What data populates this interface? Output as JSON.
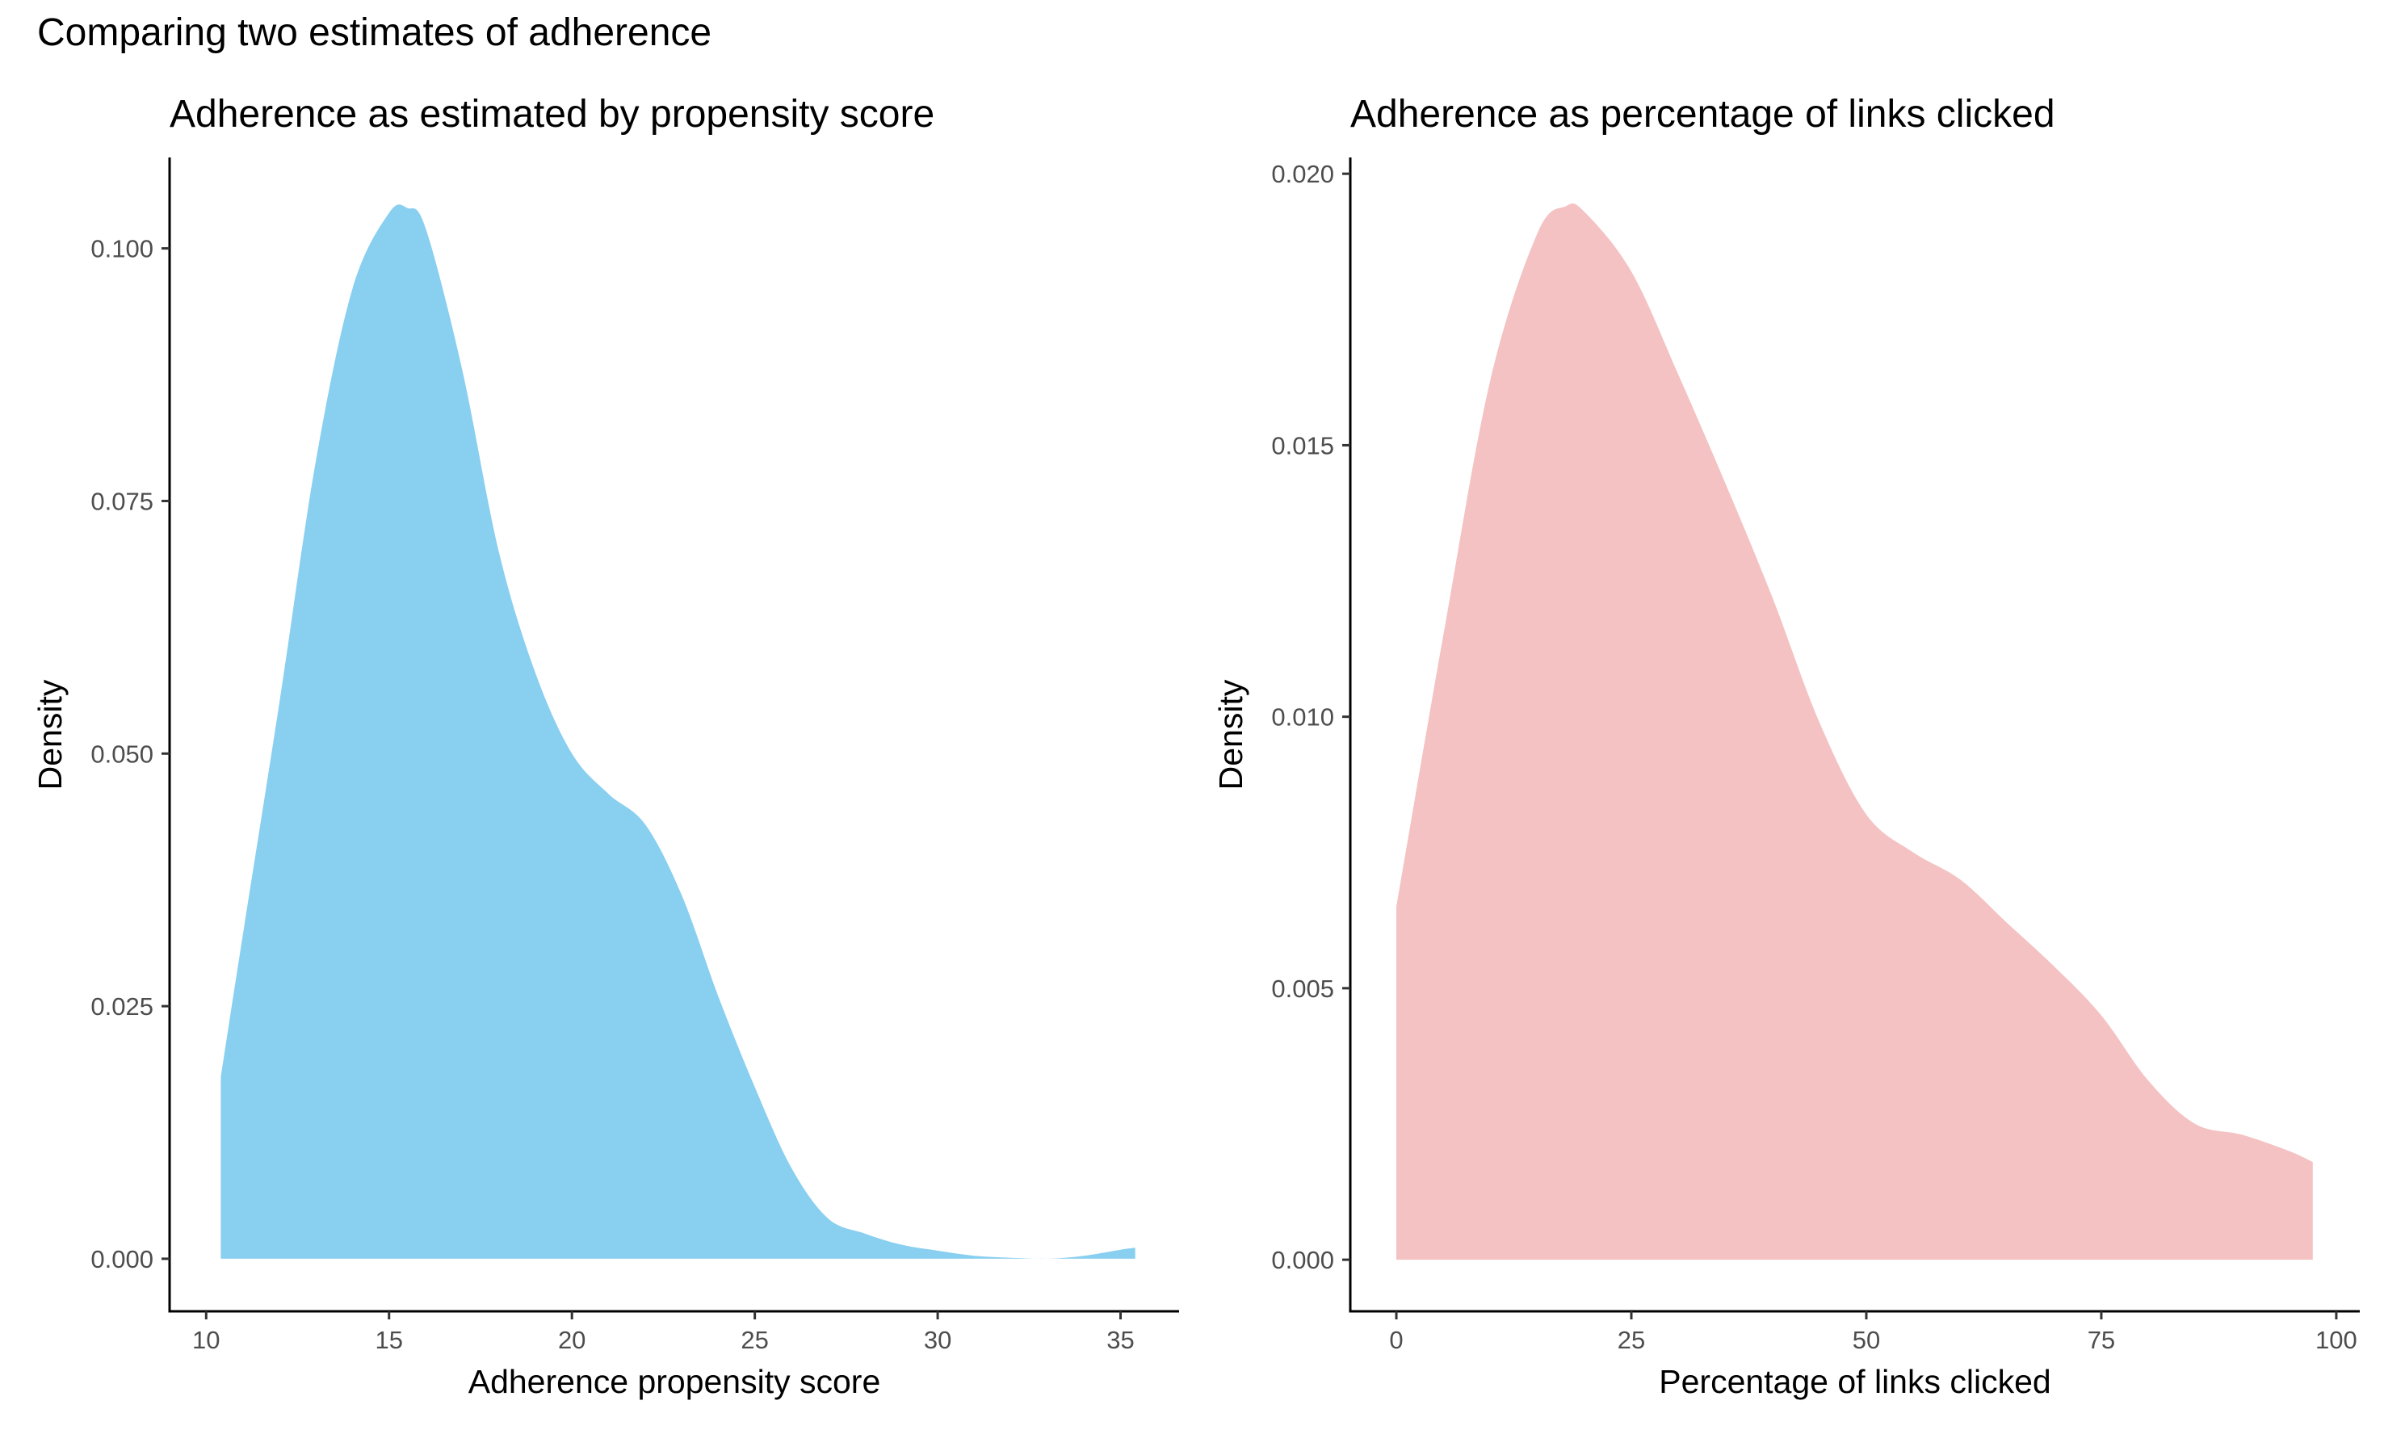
{
  "page_title": "Comparing two estimates of adherence",
  "chart_data": [
    {
      "type": "area",
      "title": "Adherence as estimated by propensity score",
      "xlabel": "Adherence propensity score",
      "ylabel": "Density",
      "xlim": [
        9.0,
        36.6
      ],
      "ylim": [
        -0.0052,
        0.109
      ],
      "xticks": [
        "10",
        "15",
        "20",
        "25",
        "30",
        "35"
      ],
      "yticks": [
        "0.000",
        "0.025",
        "0.050",
        "0.075",
        "0.100"
      ],
      "fill_color": "#89CFF0",
      "x": [
        10.4,
        11.0,
        12.0,
        13.0,
        14.0,
        15.0,
        15.5,
        16.0,
        17.0,
        18.0,
        19.0,
        20.0,
        21.0,
        22.0,
        23.0,
        24.0,
        25.0,
        26.0,
        27.0,
        28.0,
        29.0,
        30.0,
        31.0,
        32.0,
        33.0,
        34.0,
        35.0,
        35.4
      ],
      "y": [
        0.018,
        0.032,
        0.055,
        0.079,
        0.096,
        0.1035,
        0.104,
        0.102,
        0.088,
        0.07,
        0.058,
        0.05,
        0.046,
        0.043,
        0.036,
        0.026,
        0.017,
        0.009,
        0.004,
        0.0025,
        0.0014,
        0.0008,
        0.0003,
        0.0001,
        0.0,
        0.0003,
        0.0009,
        0.0011
      ]
    },
    {
      "type": "area",
      "title": "Adherence as percentage of links clicked",
      "xlabel": "Percentage of links clicked",
      "ylabel": "Density",
      "xlim": [
        -4.9,
        102.5
      ],
      "ylim": [
        -0.00095,
        0.0203
      ],
      "xticks": [
        "0",
        "25",
        "50",
        "75",
        "100"
      ],
      "yticks": [
        "0.000",
        "0.005",
        "0.010",
        "0.015",
        "0.020"
      ],
      "fill_color": "#F4C2C2",
      "x": [
        0,
        5,
        10,
        15,
        18,
        20,
        25,
        30,
        35,
        40,
        45,
        50,
        55,
        60,
        65,
        70,
        75,
        80,
        85,
        90,
        95,
        97.5
      ],
      "y": [
        0.0065,
        0.0115,
        0.0162,
        0.0189,
        0.0194,
        0.0193,
        0.0182,
        0.0163,
        0.0143,
        0.0122,
        0.0099,
        0.0082,
        0.0075,
        0.007,
        0.0062,
        0.0054,
        0.0045,
        0.0033,
        0.0025,
        0.0023,
        0.002,
        0.0018
      ]
    }
  ]
}
